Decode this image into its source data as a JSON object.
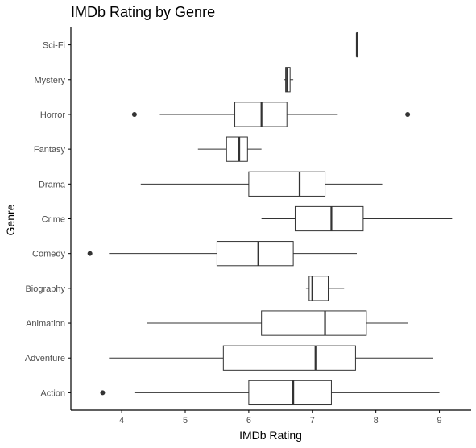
{
  "chart_data": {
    "type": "boxplot",
    "orientation": "horizontal",
    "title": "IMDb Rating by Genre",
    "xlabel": "IMDb Rating",
    "ylabel": "Genre",
    "xlim": [
      3.2,
      9.5
    ],
    "xticks": [
      4,
      5,
      6,
      7,
      8,
      9
    ],
    "grid": false,
    "legend": "none",
    "colors": {
      "line": "#333333",
      "axis": "#000000",
      "fill": "#ffffff",
      "outlier": "#333333"
    },
    "categories": [
      "Action",
      "Adventure",
      "Animation",
      "Biography",
      "Comedy",
      "Crime",
      "Drama",
      "Fantasy",
      "Horror",
      "Mystery",
      "Sci-Fi"
    ],
    "boxes": [
      {
        "genre": "Action",
        "min": 4.2,
        "q1": 6.0,
        "median": 6.7,
        "q3": 7.3,
        "max": 9.0,
        "outliers": [
          3.7
        ]
      },
      {
        "genre": "Adventure",
        "min": 3.8,
        "q1": 5.6,
        "median": 7.05,
        "q3": 7.68,
        "max": 8.9,
        "outliers": []
      },
      {
        "genre": "Animation",
        "min": 4.4,
        "q1": 6.2,
        "median": 7.2,
        "q3": 7.85,
        "max": 8.5,
        "outliers": []
      },
      {
        "genre": "Biography",
        "min": 6.9,
        "q1": 6.95,
        "median": 7.0,
        "q3": 7.25,
        "max": 7.5,
        "outliers": []
      },
      {
        "genre": "Comedy",
        "min": 3.8,
        "q1": 5.5,
        "median": 6.15,
        "q3": 6.7,
        "max": 7.7,
        "outliers": [
          3.5
        ]
      },
      {
        "genre": "Crime",
        "min": 6.2,
        "q1": 6.73,
        "median": 7.3,
        "q3": 7.8,
        "max": 9.2,
        "outliers": []
      },
      {
        "genre": "Drama",
        "min": 4.3,
        "q1": 6.0,
        "median": 6.8,
        "q3": 7.2,
        "max": 8.1,
        "outliers": []
      },
      {
        "genre": "Fantasy",
        "min": 5.2,
        "q1": 5.65,
        "median": 5.85,
        "q3": 5.98,
        "max": 6.2,
        "outliers": []
      },
      {
        "genre": "Horror",
        "min": 4.6,
        "q1": 5.78,
        "median": 6.2,
        "q3": 6.6,
        "max": 7.4,
        "outliers": [
          4.2,
          8.5
        ]
      },
      {
        "genre": "Mystery",
        "min": 6.55,
        "q1": 6.58,
        "median": 6.6,
        "q3": 6.65,
        "max": 6.7,
        "outliers": []
      },
      {
        "genre": "Sci-Fi",
        "min": 7.7,
        "q1": 7.7,
        "median": 7.7,
        "q3": 7.7,
        "max": 7.7,
        "outliers": []
      }
    ]
  }
}
